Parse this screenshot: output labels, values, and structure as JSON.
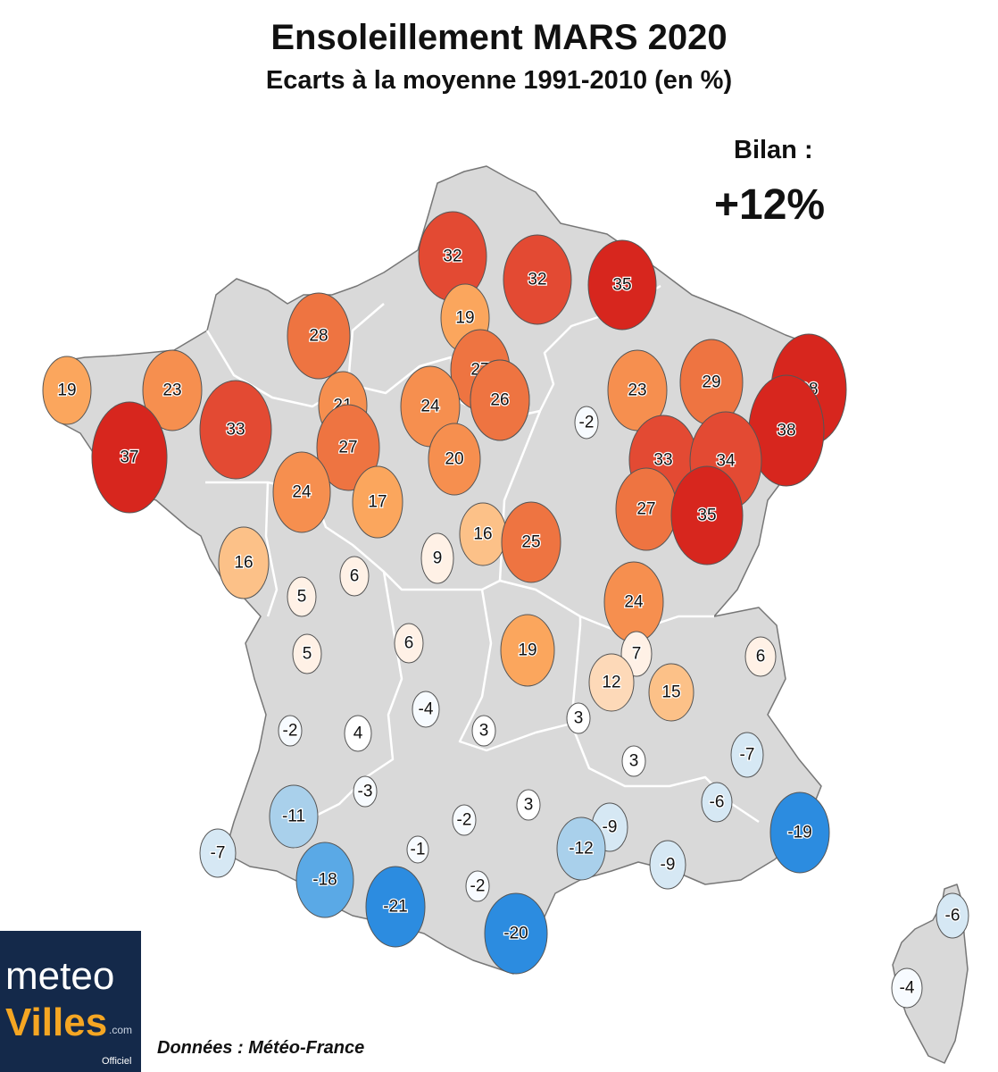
{
  "title": "Ensoleillement MARS 2020",
  "subtitle": "Ecarts à la moyenne 1991-2010 (en %)",
  "summary": {
    "label": "Bilan :",
    "value": "+12%"
  },
  "source": "Données : Météo-France",
  "logo": {
    "line1": "meteo",
    "line2": "Villes",
    "suffix": ".com",
    "tag": "Officiel"
  },
  "colors": {
    "land": "#d9d9d9",
    "border": "#777777",
    "scale": [
      {
        "min": 35,
        "color": "#d7261e"
      },
      {
        "min": 30,
        "color": "#e34a33"
      },
      {
        "min": 25,
        "color": "#ee7441"
      },
      {
        "min": 20,
        "color": "#f68f4f"
      },
      {
        "min": 17,
        "color": "#fba65d"
      },
      {
        "min": 14,
        "color": "#fcc188"
      },
      {
        "min": 10,
        "color": "#fdd9b8"
      },
      {
        "min": 5,
        "color": "#fff1e6"
      },
      {
        "min": 0,
        "color": "#ffffff"
      },
      {
        "min": -5,
        "color": "#f7fbff"
      },
      {
        "min": -10,
        "color": "#d6e8f4"
      },
      {
        "min": -15,
        "color": "#a9d0eb"
      },
      {
        "min": -18.5,
        "color": "#5aa9e6"
      },
      {
        "min": -100,
        "color": "#2c8ce0"
      }
    ]
  },
  "stations": [
    {
      "id": "s1",
      "value": 32
    },
    {
      "id": "s2",
      "value": 32
    },
    {
      "id": "s3",
      "value": 35
    },
    {
      "id": "s4",
      "value": 19
    },
    {
      "id": "s5",
      "value": 28
    },
    {
      "id": "s6",
      "value": 27
    },
    {
      "id": "s7",
      "value": 26
    },
    {
      "id": "s8",
      "value": 24
    },
    {
      "id": "s9",
      "value": 23
    },
    {
      "id": "s10",
      "value": 29
    },
    {
      "id": "s11",
      "value": 38
    },
    {
      "id": "s12",
      "value": 38
    },
    {
      "id": "s13",
      "value": 19
    },
    {
      "id": "s14",
      "value": 23
    },
    {
      "id": "s15",
      "value": 37
    },
    {
      "id": "s16",
      "value": 33
    },
    {
      "id": "s17",
      "value": 21
    },
    {
      "id": "s18",
      "value": 27
    },
    {
      "id": "s19",
      "value": 20
    },
    {
      "id": "s20",
      "value": -2
    },
    {
      "id": "s21",
      "value": 33
    },
    {
      "id": "s22",
      "value": 34
    },
    {
      "id": "s23",
      "value": 26
    },
    {
      "id": "s24",
      "value": 24
    },
    {
      "id": "s25",
      "value": 17
    },
    {
      "id": "s26",
      "value": 16
    },
    {
      "id": "s27",
      "value": 25
    },
    {
      "id": "s28",
      "value": 27
    },
    {
      "id": "s29",
      "value": 35
    },
    {
      "id": "s30",
      "value": 16
    },
    {
      "id": "s31",
      "value": 9
    },
    {
      "id": "s32",
      "value": 6
    },
    {
      "id": "s33",
      "value": 5
    },
    {
      "id": "s34",
      "value": 24
    },
    {
      "id": "s35",
      "value": 5
    },
    {
      "id": "s36",
      "value": 6
    },
    {
      "id": "s37",
      "value": 19
    },
    {
      "id": "s38",
      "value": 7
    },
    {
      "id": "s39",
      "value": 12
    },
    {
      "id": "s40",
      "value": 15
    },
    {
      "id": "s41",
      "value": 6
    },
    {
      "id": "s42",
      "value": -4
    },
    {
      "id": "s43",
      "value": -2
    },
    {
      "id": "s44",
      "value": 4
    },
    {
      "id": "s45",
      "value": 3
    },
    {
      "id": "s46",
      "value": 3
    },
    {
      "id": "s47",
      "value": -7
    },
    {
      "id": "s48",
      "value": 3
    },
    {
      "id": "s49",
      "value": -3
    },
    {
      "id": "s50",
      "value": -6
    },
    {
      "id": "s51",
      "value": -11
    },
    {
      "id": "s52",
      "value": 3
    },
    {
      "id": "s53",
      "value": -2
    },
    {
      "id": "s54",
      "value": -9
    },
    {
      "id": "s55",
      "value": -19
    },
    {
      "id": "s56",
      "value": -1
    },
    {
      "id": "s57",
      "value": -12
    },
    {
      "id": "s58",
      "value": -7
    },
    {
      "id": "s59",
      "value": -9
    },
    {
      "id": "s60",
      "value": -18
    },
    {
      "id": "s61",
      "value": -2
    },
    {
      "id": "s62",
      "value": -21
    },
    {
      "id": "s63",
      "value": -20
    },
    {
      "id": "s64",
      "value": -6
    },
    {
      "id": "s65",
      "value": -4
    }
  ]
}
